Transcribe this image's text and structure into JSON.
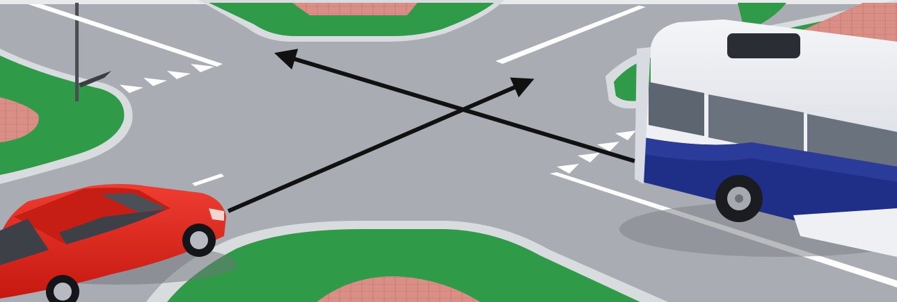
{
  "scene": {
    "kind": "road-intersection-illustration",
    "vehicles": [
      {
        "name": "car",
        "color": "#e0251d"
      },
      {
        "name": "bus",
        "color": "#1f2e86"
      }
    ],
    "colors": {
      "asphalt": "#a9adb3",
      "grass": "#2f9a47",
      "curb": "#d9dcde",
      "paving": "#d98e86",
      "arrow": "#111111"
    },
    "icons": [
      "arrow-car-path",
      "arrow-bus-path"
    ]
  }
}
